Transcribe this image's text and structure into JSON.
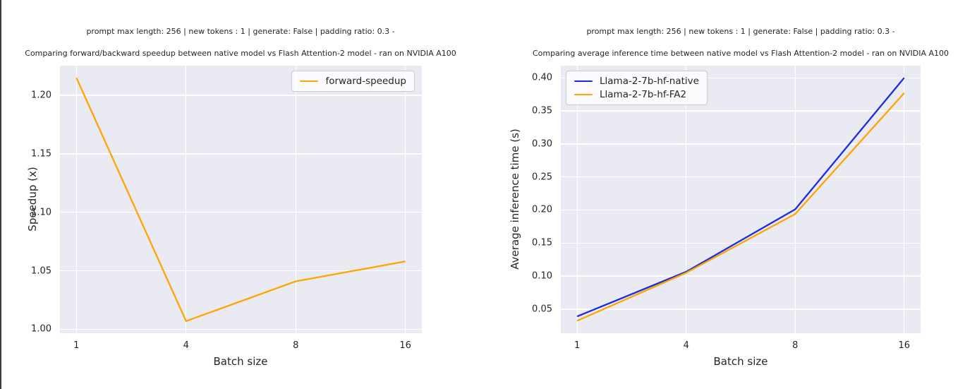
{
  "window": {
    "left_border_color": "#3d3d3d"
  },
  "palette": {
    "figure_background": "#ffffff",
    "axes_background": "#eaeaf2",
    "grid_color": "#ffffff",
    "text_color": "#262626",
    "legend_border": "#cccccc",
    "orange": "#FFA500",
    "blue": "#1A2BE0"
  },
  "chart_data": [
    {
      "type": "line",
      "suptitle": "prompt max length: 256 | new tokens : 1 | generate: False | padding ratio: 0.3 -",
      "title": "Comparing forward/backward speedup between native model vs Flash Attention-2 model - ran on NVIDIA A100",
      "xlabel": "Batch size",
      "ylabel": "Speedup (x)",
      "categories": [
        "1",
        "4",
        "8",
        "16"
      ],
      "x_values": [
        1,
        4,
        8,
        16
      ],
      "yticks": [
        "1.00",
        "1.05",
        "1.10",
        "1.15",
        "1.20"
      ],
      "ylim": [
        0.9966,
        1.2254
      ],
      "grid": true,
      "legend_position": "upper-right",
      "series": [
        {
          "name": "forward-speedup",
          "color": "#FFA500",
          "values": [
            1.215,
            1.007,
            1.041,
            1.058
          ]
        }
      ]
    },
    {
      "type": "line",
      "suptitle": "prompt max length: 256 | new tokens : 1 | generate: False | padding ratio: 0.3 -",
      "title": "Comparing average inference time between native model vs Flash Attention-2 model - ran on NVIDIA A100",
      "xlabel": "Batch size",
      "ylabel": "Average inference time (s)",
      "categories": [
        "1",
        "4",
        "8",
        "16"
      ],
      "x_values": [
        1,
        4,
        8,
        16
      ],
      "yticks": [
        "0.05",
        "0.10",
        "0.15",
        "0.20",
        "0.25",
        "0.30",
        "0.35",
        "0.40"
      ],
      "ylim": [
        0.0136,
        0.4184
      ],
      "grid": true,
      "legend_position": "upper-left",
      "series": [
        {
          "name": "Llama-2-7b-hf-native",
          "color": "#1A2BE0",
          "values": [
            0.039,
            0.1065,
            0.201,
            0.4
          ]
        },
        {
          "name": "Llama-2-7b-hf-FA2",
          "color": "#FFA500",
          "values": [
            0.0325,
            0.105,
            0.194,
            0.377
          ]
        }
      ]
    }
  ]
}
